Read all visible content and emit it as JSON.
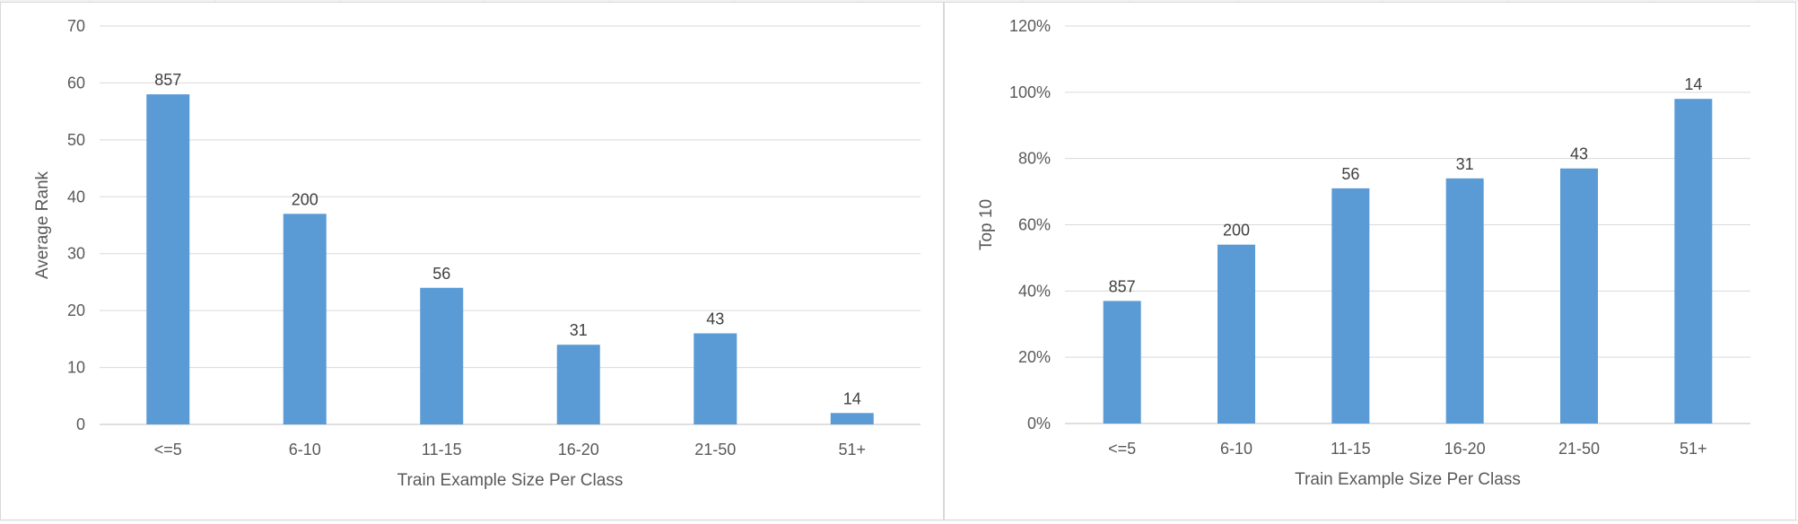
{
  "colors": {
    "bar": "#5b9bd5",
    "gridline": "#d9d9d9",
    "axis_text": "#595959",
    "label_text": "#404040"
  },
  "chart_data": [
    {
      "type": "bar",
      "title": "",
      "categories": [
        "<=5",
        "6-10",
        "11-15",
        "16-20",
        "21-50",
        "51+"
      ],
      "values": [
        58,
        37,
        24,
        14,
        16,
        2
      ],
      "data_labels": [
        "857",
        "200",
        "56",
        "31",
        "43",
        "14"
      ],
      "xlabel": "Train Example Size Per Class",
      "ylabel": "Average Rank",
      "ylim": [
        0,
        70
      ],
      "yticks": [
        "0",
        "10",
        "20",
        "30",
        "40",
        "50",
        "60",
        "70"
      ],
      "grid": true,
      "legend": "none"
    },
    {
      "type": "bar",
      "title": "",
      "categories": [
        "<=5",
        "6-10",
        "11-15",
        "16-20",
        "21-50",
        "51+"
      ],
      "values": [
        0.37,
        0.54,
        0.71,
        0.74,
        0.77,
        0.98
      ],
      "data_labels": [
        "857",
        "200",
        "56",
        "31",
        "43",
        "14"
      ],
      "xlabel": "Train Example Size Per Class",
      "ylabel": "Top 10",
      "ylim": [
        0,
        1.2
      ],
      "yticks": [
        "0%",
        "20%",
        "40%",
        "60%",
        "80%",
        "100%",
        "120%"
      ],
      "grid": true,
      "legend": "none"
    }
  ]
}
